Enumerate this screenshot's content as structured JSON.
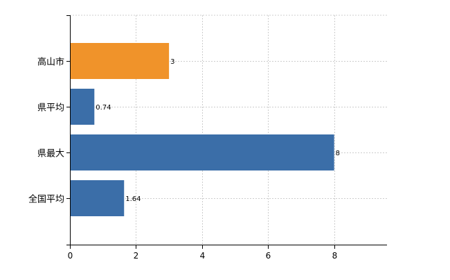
{
  "chart_data": {
    "type": "bar",
    "orientation": "horizontal",
    "categories": [
      "高山市",
      "県平均",
      "県最大",
      "全国平均"
    ],
    "values": [
      3,
      0.74,
      8,
      1.64
    ],
    "data_labels": [
      "3",
      "0.74",
      "8",
      "1.64"
    ],
    "bar_colors": [
      "#f0932a",
      "#3b6ea8",
      "#3b6ea8",
      "#3b6ea8"
    ],
    "highlight_color": "#f0932a",
    "base_color": "#3b6ea8",
    "xlim": [
      0,
      9.6
    ],
    "x_ticks": [
      0,
      2,
      4,
      6,
      8
    ],
    "grid": true,
    "grid_style": "dashed-light",
    "title": "",
    "xlabel": "",
    "ylabel": "",
    "legend": "none"
  }
}
